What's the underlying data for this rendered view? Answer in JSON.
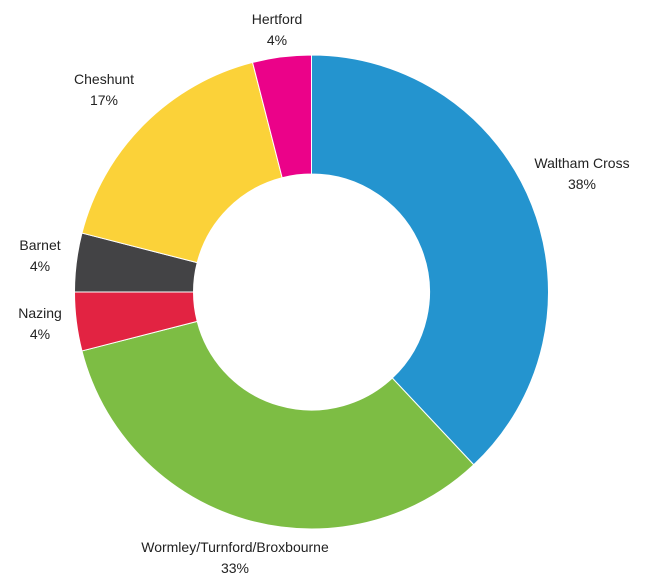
{
  "chart_data": {
    "type": "pie",
    "variant": "donut",
    "title": "",
    "legend": "none",
    "slices": [
      {
        "name": "Waltham Cross",
        "value": 38,
        "label": "38%",
        "color": "#2494CF"
      },
      {
        "name": "Wormley/Turnford/Broxbourne",
        "value": 33,
        "label": "33%",
        "color": "#7DBD44"
      },
      {
        "name": "Nazing",
        "value": 4,
        "label": "4%",
        "color": "#E22342"
      },
      {
        "name": "Barnet",
        "value": 4,
        "label": "4%",
        "color": "#434345"
      },
      {
        "name": "Cheshunt",
        "value": 17,
        "label": "17%",
        "color": "#FBD239"
      },
      {
        "name": "Hertford",
        "value": 4,
        "label": "4%",
        "color": "#EB0289"
      }
    ]
  }
}
